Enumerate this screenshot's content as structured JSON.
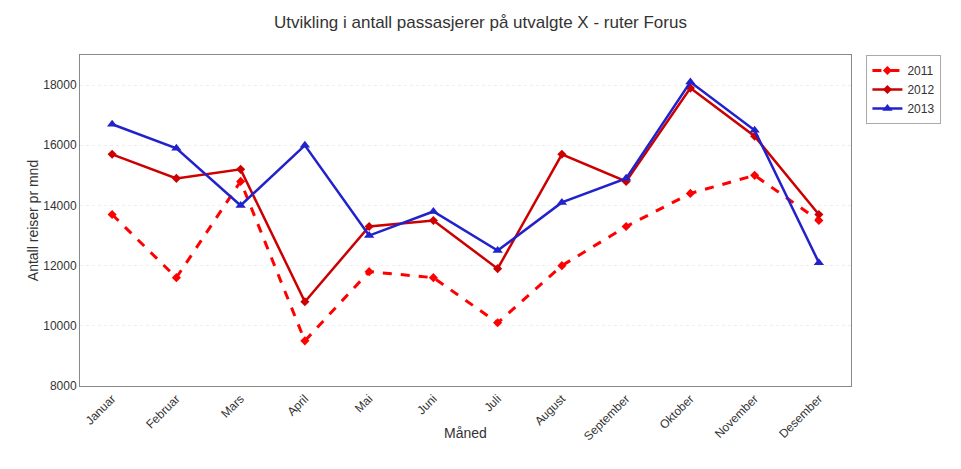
{
  "chart_data": {
    "type": "line",
    "title": "Utvikling i antall passasjerer på utvalgte X - ruter Forus",
    "xlabel": "Måned",
    "ylabel": "Antall reiser pr mnd",
    "categories": [
      "Januar",
      "Februar",
      "Mars",
      "April",
      "Mai",
      "Juni",
      "Juli",
      "August",
      "September",
      "Oktober",
      "November",
      "Desember"
    ],
    "series": [
      {
        "name": "2011",
        "color": "#FF0000",
        "line_style": "dashed",
        "marker": "diamond",
        "values": [
          13700,
          11600,
          14800,
          9500,
          11800,
          11600,
          10100,
          12000,
          13300,
          14400,
          15000,
          13500
        ]
      },
      {
        "name": "2012",
        "color": "#CC0000",
        "line_style": "solid",
        "marker": "diamond",
        "values": [
          15700,
          14900,
          15200,
          10800,
          13300,
          13500,
          11900,
          15700,
          14800,
          17900,
          16300,
          13700
        ]
      },
      {
        "name": "2013",
        "color": "#2222CC",
        "line_style": "solid",
        "marker": "triangle-up",
        "values": [
          16700,
          15900,
          14000,
          16000,
          13000,
          13800,
          12500,
          14100,
          14900,
          18100,
          16500,
          12100
        ]
      }
    ],
    "ylim": [
      8000,
      19000
    ],
    "yticks": [
      8000,
      10000,
      12000,
      14000,
      16000,
      18000
    ],
    "grid": true,
    "legend": "upper right"
  }
}
